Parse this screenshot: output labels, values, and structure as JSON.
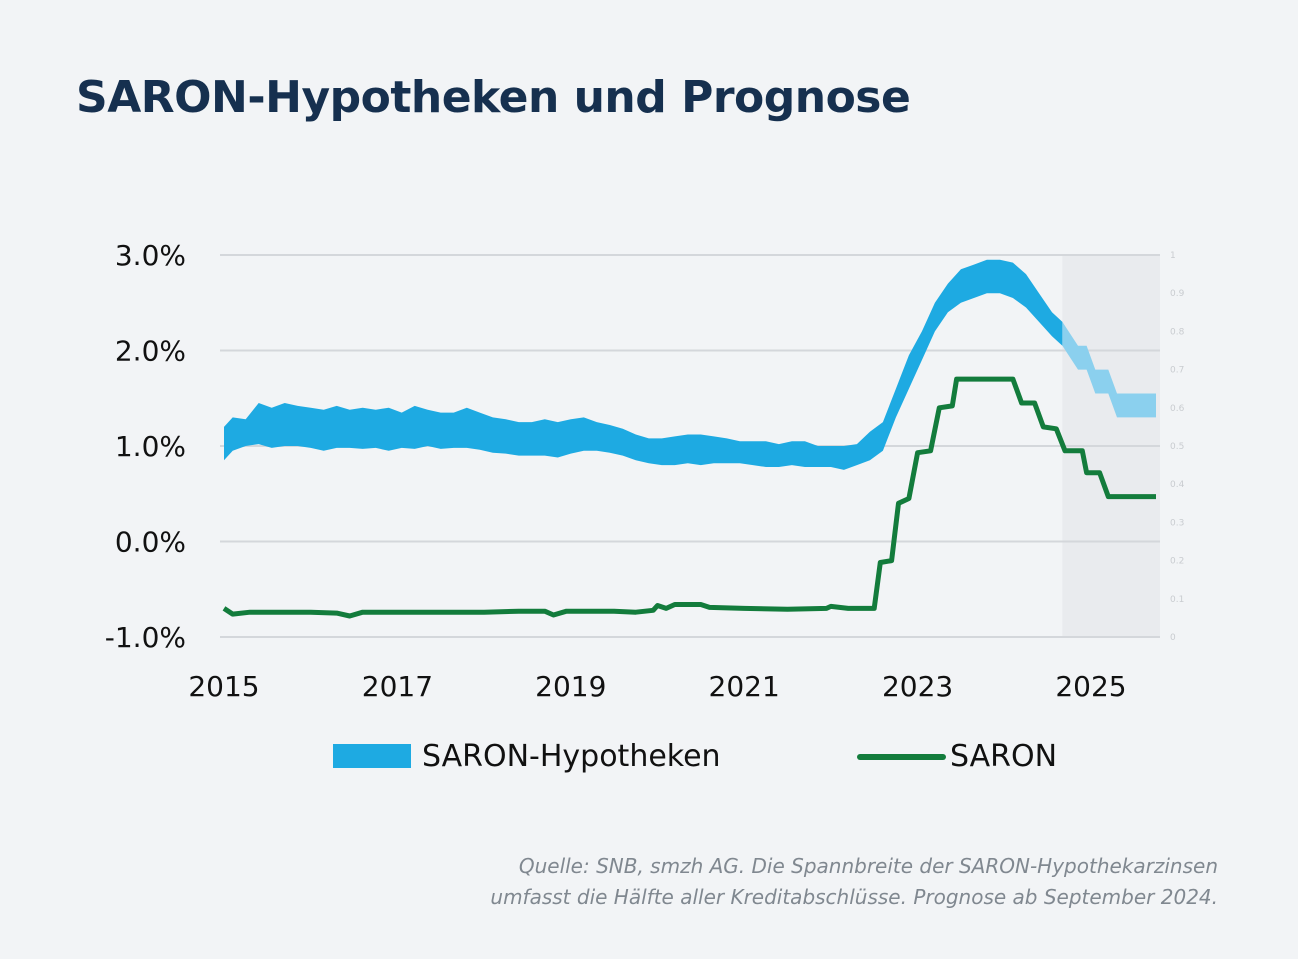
{
  "title": "SARON-Hypotheken und Prognose",
  "source_line1": "Quelle: SNB, smzh AG. Die Spannbreite der SARON-Hypothekarzinsen",
  "source_line2": "umfasst die Hälfte aller Kreditabschlüsse. Prognose ab September 2024.",
  "colors": {
    "band": "#1eaae2",
    "band_forecast": "#8bd0ee",
    "saron": "#137c3c",
    "grid": "#d4d7db",
    "forecast_bg": "#e9ebee",
    "title": "#16304f"
  },
  "chart_data": {
    "type": "area",
    "title": "SARON-Hypotheken und Prognose",
    "xlabel": "",
    "ylabel": "",
    "xlim": [
      2015.0,
      2025.75
    ],
    "ylim": [
      -1.0,
      3.0
    ],
    "grid": true,
    "forecast_start": 2024.67,
    "y_ticks": [
      "3.0%",
      "2.0%",
      "1.0%",
      "0.0%",
      "-1.0%"
    ],
    "y_tick_values": [
      3.0,
      2.0,
      1.0,
      0.0,
      -1.0
    ],
    "x_ticks": [
      "2015",
      "2017",
      "2019",
      "2021",
      "2023",
      "2025"
    ],
    "x_tick_values": [
      2015,
      2017,
      2019,
      2021,
      2023,
      2025
    ],
    "right_ticks": [
      "1",
      "0.9",
      "0.8",
      "0.7",
      "0.6",
      "0.5",
      "0.4",
      "0.3",
      "0.2",
      "0.1",
      "0"
    ],
    "legend_position": "bottom",
    "series": [
      {
        "name": "SARON-Hypotheken",
        "kind": "range",
        "points": [
          [
            2015.0,
            0.85,
            1.2
          ],
          [
            2015.1,
            0.95,
            1.3
          ],
          [
            2015.25,
            1.0,
            1.28
          ],
          [
            2015.4,
            1.02,
            1.45
          ],
          [
            2015.55,
            0.98,
            1.4
          ],
          [
            2015.7,
            1.0,
            1.45
          ],
          [
            2015.85,
            1.0,
            1.42
          ],
          [
            2016.0,
            0.98,
            1.4
          ],
          [
            2016.15,
            0.95,
            1.38
          ],
          [
            2016.3,
            0.98,
            1.42
          ],
          [
            2016.45,
            0.98,
            1.38
          ],
          [
            2016.6,
            0.97,
            1.4
          ],
          [
            2016.75,
            0.98,
            1.38
          ],
          [
            2016.9,
            0.95,
            1.4
          ],
          [
            2017.05,
            0.98,
            1.35
          ],
          [
            2017.2,
            0.97,
            1.42
          ],
          [
            2017.35,
            1.0,
            1.38
          ],
          [
            2017.5,
            0.97,
            1.35
          ],
          [
            2017.65,
            0.98,
            1.35
          ],
          [
            2017.8,
            0.98,
            1.4
          ],
          [
            2017.95,
            0.96,
            1.35
          ],
          [
            2018.1,
            0.93,
            1.3
          ],
          [
            2018.25,
            0.92,
            1.28
          ],
          [
            2018.4,
            0.9,
            1.25
          ],
          [
            2018.55,
            0.9,
            1.25
          ],
          [
            2018.7,
            0.9,
            1.28
          ],
          [
            2018.85,
            0.88,
            1.25
          ],
          [
            2019.0,
            0.92,
            1.28
          ],
          [
            2019.15,
            0.95,
            1.3
          ],
          [
            2019.3,
            0.95,
            1.25
          ],
          [
            2019.45,
            0.93,
            1.22
          ],
          [
            2019.6,
            0.9,
            1.18
          ],
          [
            2019.75,
            0.85,
            1.12
          ],
          [
            2019.9,
            0.82,
            1.08
          ],
          [
            2020.05,
            0.8,
            1.08
          ],
          [
            2020.2,
            0.8,
            1.1
          ],
          [
            2020.35,
            0.82,
            1.12
          ],
          [
            2020.5,
            0.8,
            1.12
          ],
          [
            2020.65,
            0.82,
            1.1
          ],
          [
            2020.8,
            0.82,
            1.08
          ],
          [
            2020.95,
            0.82,
            1.05
          ],
          [
            2021.1,
            0.8,
            1.05
          ],
          [
            2021.25,
            0.78,
            1.05
          ],
          [
            2021.4,
            0.78,
            1.02
          ],
          [
            2021.55,
            0.8,
            1.05
          ],
          [
            2021.7,
            0.78,
            1.05
          ],
          [
            2021.85,
            0.78,
            1.0
          ],
          [
            2022.0,
            0.78,
            1.0
          ],
          [
            2022.15,
            0.75,
            1.0
          ],
          [
            2022.3,
            0.8,
            1.02
          ],
          [
            2022.45,
            0.85,
            1.15
          ],
          [
            2022.6,
            0.95,
            1.25
          ],
          [
            2022.75,
            1.3,
            1.6
          ],
          [
            2022.9,
            1.6,
            1.95
          ],
          [
            2023.05,
            1.9,
            2.2
          ],
          [
            2023.2,
            2.2,
            2.5
          ],
          [
            2023.35,
            2.4,
            2.7
          ],
          [
            2023.5,
            2.5,
            2.85
          ],
          [
            2023.65,
            2.55,
            2.9
          ],
          [
            2023.8,
            2.6,
            2.95
          ],
          [
            2023.95,
            2.6,
            2.95
          ],
          [
            2024.1,
            2.55,
            2.92
          ],
          [
            2024.25,
            2.45,
            2.8
          ],
          [
            2024.4,
            2.3,
            2.6
          ],
          [
            2024.55,
            2.15,
            2.4
          ],
          [
            2024.67,
            2.05,
            2.3
          ]
        ]
      },
      {
        "name": "SARON-Hypotheken Prognose",
        "kind": "range-forecast",
        "points": [
          [
            2024.67,
            2.05,
            2.3
          ],
          [
            2024.85,
            1.8,
            2.05
          ],
          [
            2024.95,
            1.8,
            2.05
          ],
          [
            2025.05,
            1.55,
            1.8
          ],
          [
            2025.2,
            1.55,
            1.8
          ],
          [
            2025.3,
            1.3,
            1.55
          ],
          [
            2025.75,
            1.3,
            1.55
          ]
        ]
      },
      {
        "name": "SARON",
        "kind": "line",
        "points": [
          [
            2015.0,
            -0.7
          ],
          [
            2015.1,
            -0.76
          ],
          [
            2015.3,
            -0.74
          ],
          [
            2015.7,
            -0.74
          ],
          [
            2016.0,
            -0.74
          ],
          [
            2016.3,
            -0.75
          ],
          [
            2016.45,
            -0.78
          ],
          [
            2016.6,
            -0.74
          ],
          [
            2017.0,
            -0.74
          ],
          [
            2017.5,
            -0.74
          ],
          [
            2018.0,
            -0.74
          ],
          [
            2018.4,
            -0.73
          ],
          [
            2018.7,
            -0.73
          ],
          [
            2018.8,
            -0.77
          ],
          [
            2018.95,
            -0.73
          ],
          [
            2019.5,
            -0.73
          ],
          [
            2019.75,
            -0.74
          ],
          [
            2019.95,
            -0.72
          ],
          [
            2020.0,
            -0.67
          ],
          [
            2020.1,
            -0.7
          ],
          [
            2020.2,
            -0.66
          ],
          [
            2020.5,
            -0.66
          ],
          [
            2020.6,
            -0.69
          ],
          [
            2021.0,
            -0.7
          ],
          [
            2021.5,
            -0.71
          ],
          [
            2021.95,
            -0.7
          ],
          [
            2022.0,
            -0.68
          ],
          [
            2022.2,
            -0.7
          ],
          [
            2022.5,
            -0.7
          ],
          [
            2022.57,
            -0.22
          ],
          [
            2022.7,
            -0.2
          ],
          [
            2022.78,
            0.4
          ],
          [
            2022.9,
            0.45
          ],
          [
            2023.0,
            0.93
          ],
          [
            2023.15,
            0.95
          ],
          [
            2023.25,
            1.4
          ],
          [
            2023.4,
            1.42
          ],
          [
            2023.45,
            1.7
          ],
          [
            2023.8,
            1.7
          ],
          [
            2024.1,
            1.7
          ],
          [
            2024.2,
            1.45
          ],
          [
            2024.35,
            1.45
          ],
          [
            2024.45,
            1.2
          ],
          [
            2024.6,
            1.18
          ],
          [
            2024.7,
            0.95
          ],
          [
            2024.9,
            0.95
          ],
          [
            2024.95,
            0.72
          ],
          [
            2025.1,
            0.72
          ],
          [
            2025.2,
            0.47
          ],
          [
            2025.75,
            0.47
          ]
        ]
      }
    ]
  },
  "legend": {
    "band_label": "SARON-Hypotheken",
    "line_label": "SARON"
  }
}
